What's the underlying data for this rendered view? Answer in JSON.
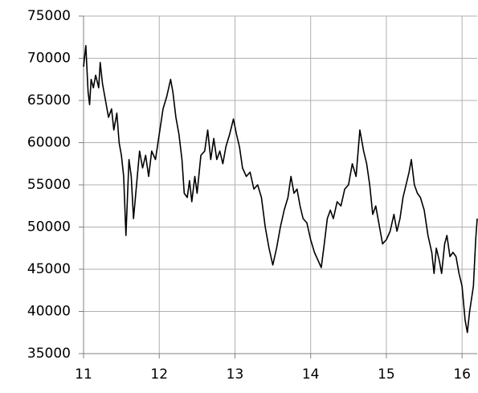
{
  "chart_data": {
    "type": "line",
    "x": [
      11.0,
      11.03,
      11.06,
      11.08,
      11.1,
      11.13,
      11.16,
      11.2,
      11.22,
      11.25,
      11.3,
      11.33,
      11.37,
      11.4,
      11.44,
      11.47,
      11.5,
      11.53,
      11.56,
      11.58,
      11.6,
      11.63,
      11.66,
      11.7,
      11.74,
      11.78,
      11.82,
      11.86,
      11.9,
      11.95,
      12.0,
      12.05,
      12.1,
      12.15,
      12.18,
      12.22,
      12.26,
      12.3,
      12.33,
      12.37,
      12.4,
      12.43,
      12.47,
      12.5,
      12.55,
      12.6,
      12.64,
      12.68,
      12.72,
      12.76,
      12.8,
      12.84,
      12.88,
      12.93,
      12.98,
      13.02,
      13.06,
      13.1,
      13.15,
      13.2,
      13.25,
      13.3,
      13.35,
      13.4,
      13.45,
      13.5,
      13.55,
      13.6,
      13.65,
      13.7,
      13.74,
      13.78,
      13.82,
      13.86,
      13.9,
      13.95,
      14.0,
      14.05,
      14.1,
      14.14,
      14.18,
      14.22,
      14.26,
      14.3,
      14.35,
      14.4,
      14.45,
      14.5,
      14.55,
      14.6,
      14.65,
      14.7,
      14.74,
      14.78,
      14.82,
      14.86,
      14.9,
      14.95,
      15.0,
      15.05,
      15.1,
      15.14,
      15.18,
      15.22,
      15.26,
      15.3,
      15.33,
      15.37,
      15.41,
      15.45,
      15.5,
      15.55,
      15.6,
      15.63,
      15.66,
      15.7,
      15.73,
      15.77,
      15.8,
      15.84,
      15.88,
      15.92,
      15.96,
      16.0,
      16.04,
      16.07,
      16.1,
      16.15,
      16.18,
      16.2
    ],
    "series": [
      {
        "color": "#000000",
        "values": [
          69000,
          71500,
          66000,
          64500,
          67500,
          66500,
          68000,
          66500,
          69500,
          67000,
          64500,
          63000,
          64000,
          61500,
          63500,
          60000,
          58500,
          56000,
          49000,
          53500,
          58000,
          56000,
          51000,
          55000,
          59000,
          57000,
          58500,
          56000,
          59000,
          58000,
          61000,
          64000,
          65500,
          67500,
          66000,
          63000,
          61000,
          58000,
          54000,
          53500,
          55500,
          53000,
          56000,
          54000,
          58500,
          59000,
          61500,
          58000,
          60500,
          58000,
          59000,
          57500,
          59500,
          61000,
          62800,
          61000,
          59500,
          57000,
          56000,
          56500,
          54500,
          55000,
          53500,
          50000,
          47500,
          45500,
          47500,
          50000,
          52000,
          53500,
          56000,
          54000,
          54500,
          52500,
          51000,
          50500,
          48500,
          47000,
          46000,
          45200,
          48000,
          51000,
          52000,
          51000,
          53000,
          52500,
          54500,
          55000,
          57500,
          56000,
          61500,
          59000,
          57500,
          55000,
          51500,
          52500,
          50500,
          48000,
          48500,
          49500,
          51500,
          49500,
          51000,
          53500,
          55000,
          56500,
          58000,
          55000,
          54000,
          53500,
          52000,
          49000,
          47000,
          44500,
          47500,
          46000,
          44500,
          48000,
          49000,
          46500,
          47000,
          46500,
          44500,
          43000,
          39000,
          37500,
          40000,
          43000,
          48500,
          51000
        ]
      }
    ],
    "xlim": [
      11,
      16.2
    ],
    "xticks": [
      11,
      12,
      13,
      14,
      15,
      16
    ],
    "ylim": [
      35000,
      75000
    ],
    "yticks": [
      35000,
      40000,
      45000,
      50000,
      55000,
      60000,
      65000,
      70000,
      75000
    ],
    "grid": true
  }
}
